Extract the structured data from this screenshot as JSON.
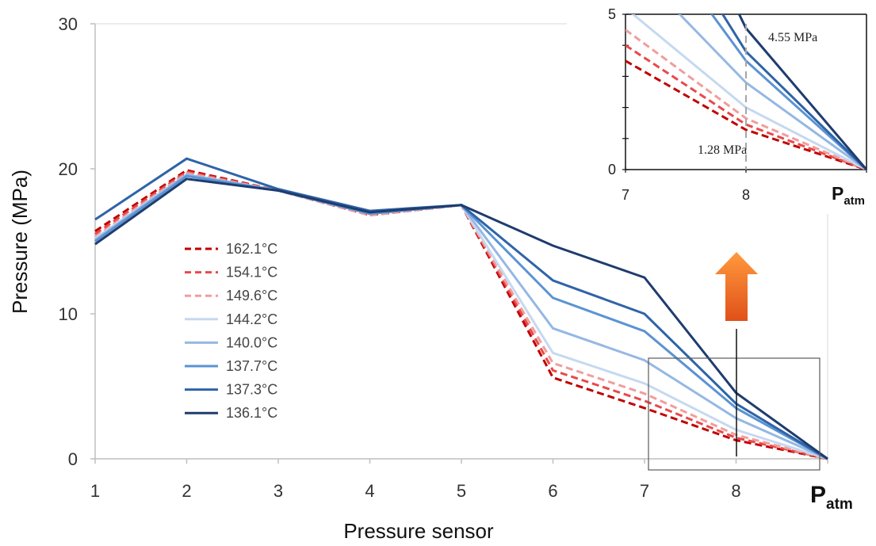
{
  "chart_data": {
    "type": "line",
    "x_labels": [
      "1",
      "2",
      "3",
      "4",
      "5",
      "6",
      "7",
      "8",
      "P"
    ],
    "x_last_subscript": "atm",
    "xlabel": "Pressure sensor",
    "ylabel": "Pressure (MPa)",
    "ylim": [
      0,
      30
    ],
    "yticks": [
      "0",
      "10",
      "20",
      "30"
    ],
    "grid": false,
    "legend_position": "center-left",
    "series": [
      {
        "name": "162.1°C",
        "color": "#c00000",
        "dashed": true,
        "values": [
          15.7,
          19.9,
          18.5,
          16.8,
          17.5,
          5.6,
          3.5,
          1.28,
          0
        ]
      },
      {
        "name": "154.1°C",
        "color": "#e8494a",
        "dashed": true,
        "values": [
          15.5,
          19.8,
          18.5,
          16.8,
          17.5,
          6.1,
          4.0,
          1.45,
          0
        ]
      },
      {
        "name": "149.6°C",
        "color": "#f19d9c",
        "dashed": true,
        "values": [
          15.3,
          19.7,
          18.5,
          16.8,
          17.5,
          6.6,
          4.5,
          1.65,
          0
        ]
      },
      {
        "name": "144.2°C",
        "color": "#c5d9f0",
        "dashed": false,
        "values": [
          15.2,
          19.6,
          18.5,
          16.9,
          17.5,
          7.3,
          5.2,
          2.0,
          0
        ]
      },
      {
        "name": "140.0°C",
        "color": "#95b8e3",
        "dashed": false,
        "values": [
          15.1,
          19.6,
          18.5,
          16.9,
          17.5,
          9.0,
          6.8,
          2.8,
          0
        ]
      },
      {
        "name": "137.7°C",
        "color": "#5b93d3",
        "dashed": false,
        "values": [
          15.0,
          19.5,
          18.5,
          16.9,
          17.5,
          11.1,
          8.8,
          3.5,
          0
        ]
      },
      {
        "name": "137.3°C",
        "color": "#2e64a8",
        "dashed": false,
        "values": [
          16.5,
          20.7,
          18.6,
          17.1,
          17.5,
          12.3,
          10.0,
          3.8,
          0
        ]
      },
      {
        "name": "136.1°C",
        "color": "#1f3c6e",
        "dashed": false,
        "values": [
          14.8,
          19.3,
          18.5,
          17.0,
          17.5,
          14.7,
          12.5,
          4.55,
          0
        ]
      }
    ],
    "inset": {
      "x_labels": [
        "7",
        "8",
        "P"
      ],
      "x_last_subscript": "atm",
      "ylim": [
        0,
        5
      ],
      "yticks": [
        "0",
        "5"
      ],
      "annotations": [
        "4.55 MPa",
        "1.28 MPa"
      ]
    }
  },
  "colors": {
    "axis": "#bfbfbf",
    "arrow_top": "#ff9a3c",
    "arrow_bottom": "#e0501a"
  }
}
